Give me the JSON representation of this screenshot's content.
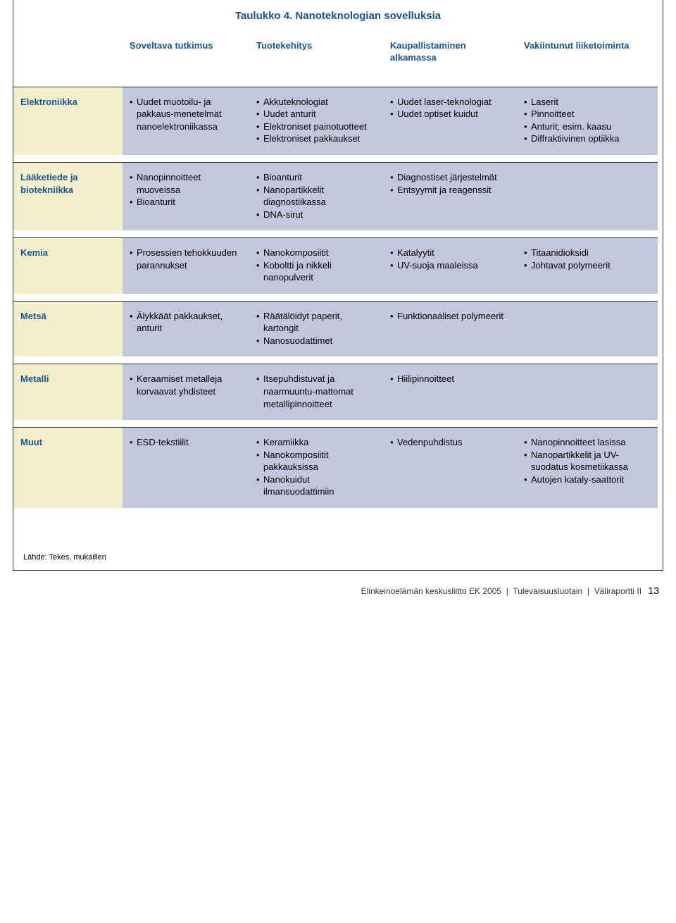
{
  "title": "Taulukko 4. Nanoteknologian sovelluksia",
  "headers": [
    "",
    "Soveltava tutkimus",
    "Tuotekehitys",
    "Kaupallistaminen alkamassa",
    "Vakiintunut liiketoiminta"
  ],
  "rows": [
    {
      "label": "Elektroniikka",
      "cols": [
        [
          "Uudet muotoilu- ja pakkaus-menetelmät nanoelektroniikassa"
        ],
        [
          "Akkuteknologiat",
          "Uudet anturit",
          "Elektroniset painotuotteet",
          "Elektroniset pakkaukset"
        ],
        [
          "Uudet laser-teknologiat",
          "Uudet optiset kuidut"
        ],
        [
          "Laserit",
          "Pinnoitteet",
          "Anturit; esim. kaasu",
          "Diffraktiivinen optiikka"
        ]
      ]
    },
    {
      "label": "Lääketiede ja biotekniikka",
      "cols": [
        [
          "Nanopinnoitteet muoveissa",
          "Bioanturit"
        ],
        [
          "Bioanturit",
          "Nanopartikkelit diagnostiikassa",
          "DNA-sirut"
        ],
        [
          "Diagnostiset järjestelmät",
          "Entsyymit ja reagenssit"
        ],
        []
      ]
    },
    {
      "label": "Kemia",
      "cols": [
        [
          "Prosessien tehokkuuden parannukset"
        ],
        [
          "Nanokomposiitit",
          "Koboltti ja nikkeli nanopulverit"
        ],
        [
          "Katalyytit",
          "UV-suoja maaleissa"
        ],
        [
          "Titaanidioksidi",
          "Johtavat polymeerit"
        ]
      ]
    },
    {
      "label": "Metsä",
      "cols": [
        [
          "Älykkäät pakkaukset, anturit"
        ],
        [
          "Räätälöidyt paperit, kartongit",
          "Nanosuodattimet"
        ],
        [
          "Funktionaaliset polymeerit"
        ],
        []
      ]
    },
    {
      "label": "Metalli",
      "cols": [
        [
          "Keraamiset metalleja korvaavat yhdisteet"
        ],
        [
          "Itsepuhdistuvat ja naarmuuntu-mattomat metallipinnoitteet"
        ],
        [
          "Hiilipinnoitteet"
        ],
        []
      ]
    },
    {
      "label": "Muut",
      "cols": [
        [
          "ESD-tekstiilit"
        ],
        [
          "Keramiikka",
          "Nanokomposiitit pakkauksissa",
          "Nanokuidut ilmansuodattimiin"
        ],
        [
          "Vedenpuhdistus"
        ],
        [
          "Nanopinnoitteet lasissa",
          "Nanopartikkelit ja UV-suodatus kosmetiikassa",
          "Autojen kataly-saattorit"
        ]
      ]
    }
  ],
  "source": "Lähde: Tekes, mukaillen",
  "footer": {
    "org": "Elinkeinoelämän keskusliitto EK 2005",
    "doc": "Tulevaisuusluotain",
    "part": "Väliraportti II",
    "page": "13"
  },
  "colors": {
    "heading": "#1a5490",
    "label_bg": "#f3f0cc",
    "cell_bg": "#c3c7de",
    "border": "#333333",
    "text": "#000000"
  }
}
